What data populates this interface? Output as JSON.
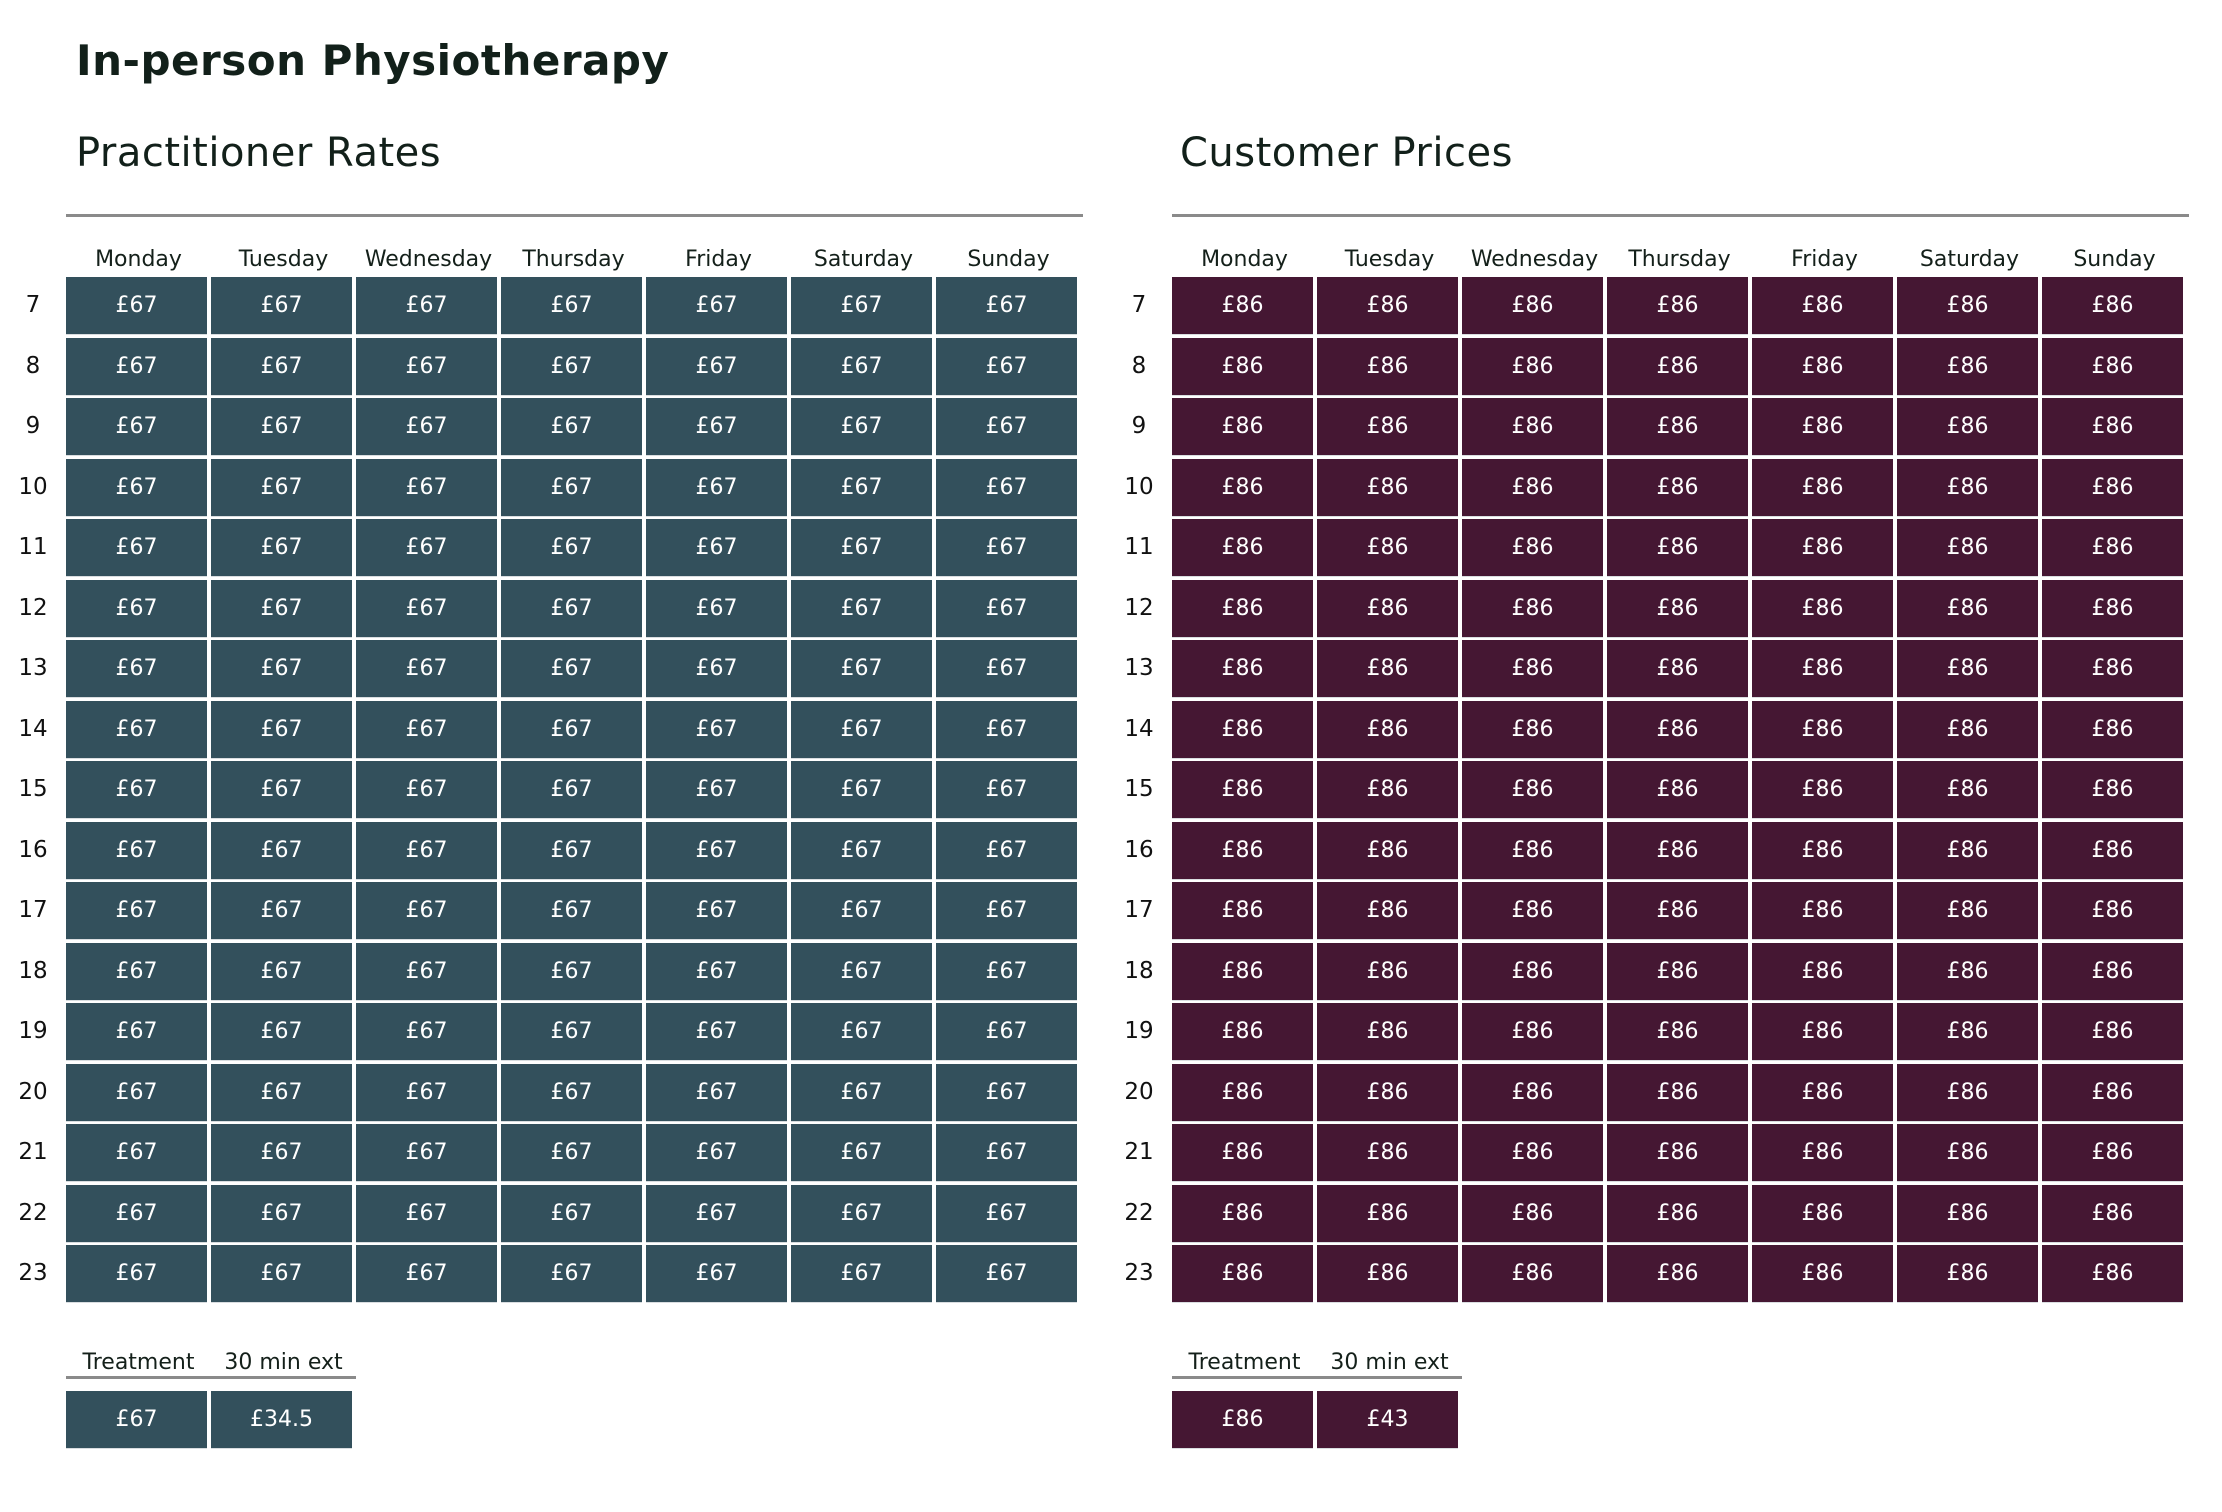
{
  "page": {
    "title": "In-person Physiotherapy"
  },
  "days": [
    "Monday",
    "Tuesday",
    "Wednesday",
    "Thursday",
    "Friday",
    "Saturday",
    "Sunday"
  ],
  "hours": [
    "7",
    "8",
    "9",
    "10",
    "11",
    "12",
    "13",
    "14",
    "15",
    "16",
    "17",
    "18",
    "19",
    "20",
    "21",
    "22",
    "23"
  ],
  "practitioner": {
    "heading": "Practitioner Rates",
    "color": "#33505c",
    "rate": "£67",
    "extras": {
      "headers": [
        "Treatment",
        "30 min ext"
      ],
      "values": [
        "£67",
        "£34.5"
      ]
    }
  },
  "customer": {
    "heading": "Customer Prices",
    "color": "#451733",
    "rate": "£86",
    "extras": {
      "headers": [
        "Treatment",
        "30 min ext"
      ],
      "values": [
        "£86",
        "£43"
      ]
    }
  }
}
